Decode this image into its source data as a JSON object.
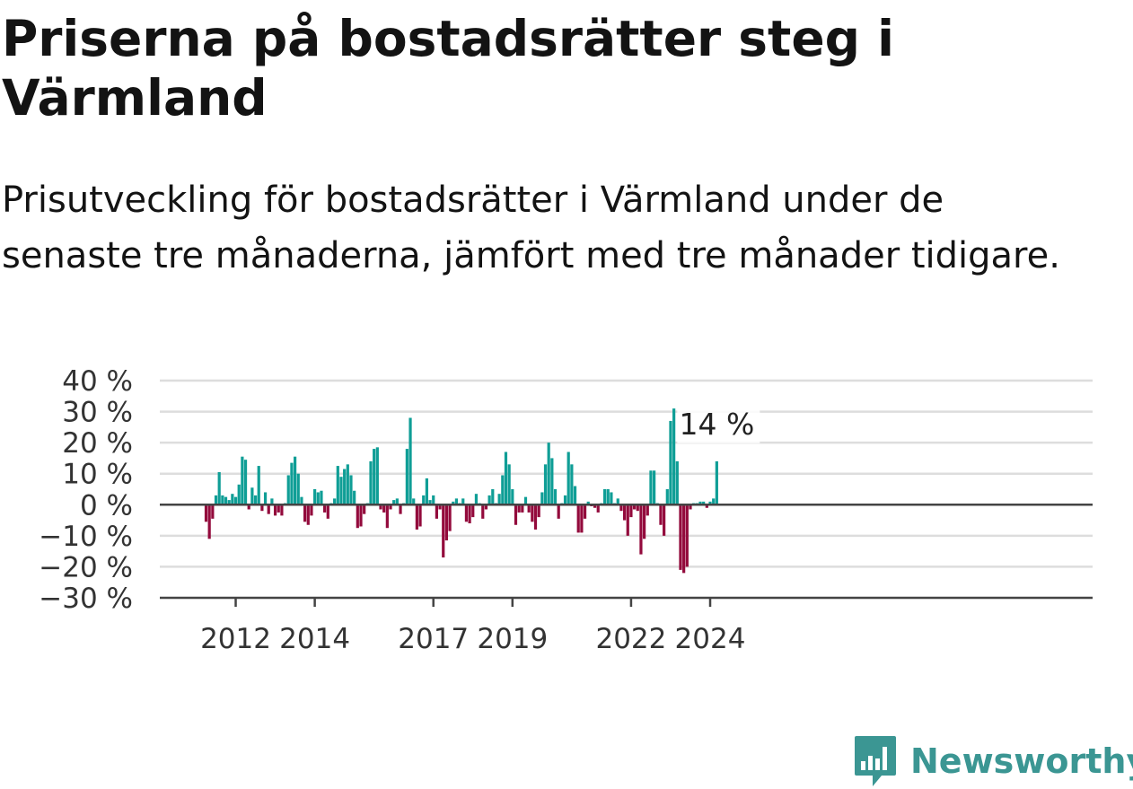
{
  "title": "Priserna på bostadsrätter steg i Värmland",
  "subtitle": "Prisutveckling för bostadsrätter i Värmland under de senaste tre månaderna, jämfört med tre månader tidigare.",
  "brand": {
    "name": "Newsworthy",
    "color": "#3b9693"
  },
  "colors": {
    "positive": "#0f9e96",
    "negative": "#930a3c",
    "grid": "#dddddd",
    "axis": "#444444"
  },
  "chart_data": {
    "type": "bar",
    "title": "",
    "xlabel": "",
    "ylabel": "",
    "ylim": [
      -30,
      40
    ],
    "y_ticks": [
      {
        "value": 40,
        "label": "40 %"
      },
      {
        "value": 30,
        "label": "30 %"
      },
      {
        "value": 20,
        "label": "20 %"
      },
      {
        "value": 10,
        "label": "10 %"
      },
      {
        "value": 0,
        "label": "0 %"
      },
      {
        "value": -10,
        "label": "−10 %"
      },
      {
        "value": -20,
        "label": "−20 %"
      },
      {
        "value": -30,
        "label": "−30 %"
      }
    ],
    "x_ticks": [
      {
        "index": 9,
        "label": "2012"
      },
      {
        "index": 33,
        "label": "2014"
      },
      {
        "index": 69,
        "label": "2017"
      },
      {
        "index": 93,
        "label": "2019"
      },
      {
        "index": 129,
        "label": "2022"
      },
      {
        "index": 153,
        "label": "2024"
      }
    ],
    "grid": true,
    "last_value_label": "14 %",
    "values": [
      -5.5,
      -11,
      -4.5,
      3,
      10.5,
      3,
      2.5,
      1.5,
      3.5,
      2.5,
      6.5,
      15.5,
      14.5,
      -1.5,
      5.5,
      3,
      12.5,
      -2,
      4,
      -3,
      2,
      -3.5,
      -2.5,
      -3.5,
      0.5,
      9.5,
      13.5,
      15.5,
      10,
      2.5,
      -5.5,
      -6.5,
      -3.5,
      5,
      4,
      4.5,
      -2.5,
      -4.5,
      0.5,
      2,
      12.5,
      9,
      11.5,
      13,
      9.5,
      4.5,
      -7.5,
      -7,
      -3,
      0.5,
      14,
      18,
      18.5,
      -1.5,
      -2.5,
      -7.5,
      -1.5,
      1.5,
      2,
      -3,
      0.5,
      18,
      28,
      2,
      -8,
      -7,
      3,
      8.5,
      1.5,
      3,
      -4.5,
      -1.5,
      -17,
      -11.5,
      -8.5,
      1,
      2,
      0.5,
      2,
      -5.5,
      -6,
      -4,
      3.5,
      0.5,
      -4.5,
      -1.5,
      3,
      5,
      0.5,
      3.5,
      9.5,
      17,
      13,
      5,
      -6.5,
      -2.5,
      -2.5,
      2.5,
      -2.5,
      -5.5,
      -8,
      -4,
      4,
      13,
      20,
      15,
      5,
      -4.5,
      0.5,
      3,
      17,
      13,
      6,
      -9,
      -9,
      -4.5,
      1,
      -0.5,
      -1,
      -2.5,
      0.5,
      5,
      5,
      4,
      0.5,
      2,
      -2,
      -5,
      -10,
      -4,
      -1.5,
      -2,
      -16,
      -11,
      -3.5,
      11,
      11,
      0.5,
      -6.5,
      -10,
      5,
      27,
      31,
      14,
      -21,
      -22,
      -20,
      -1.5,
      0.5,
      0.5,
      1,
      1,
      -1,
      1,
      2,
      14
    ]
  }
}
